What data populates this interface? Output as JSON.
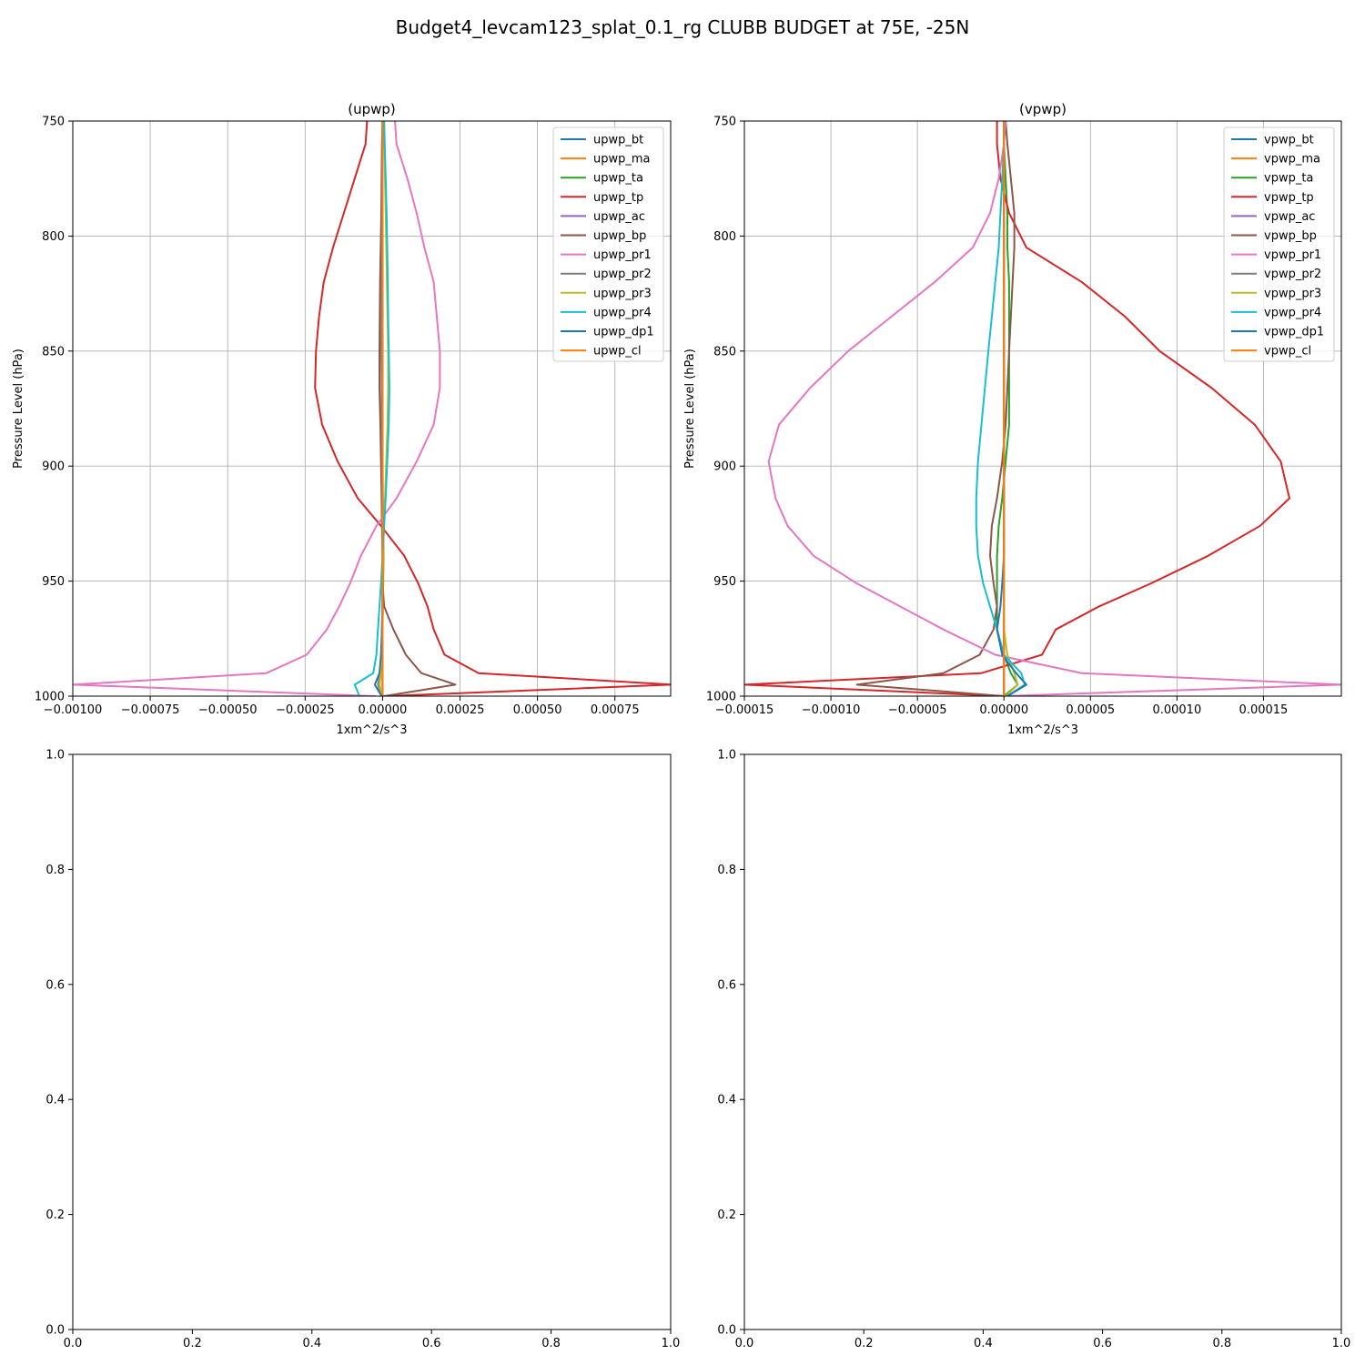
{
  "figure": {
    "suptitle": "Budget4_levcam123_splat_0.1_rg CLUBB BUDGET at 75E, -25N"
  },
  "chart_data": [
    {
      "type": "line",
      "title": "(upwp)",
      "xlabel": "1xm^2/s^3",
      "ylabel": "Pressure Level (hPa)",
      "xlim": [
        -0.001,
        0.00093
      ],
      "ylim": [
        1000,
        750
      ],
      "y_inverted": true,
      "grid": true,
      "legend_position": "top-right",
      "xticks": [
        "−0.00100",
        "−0.00075",
        "−0.00050",
        "−0.00025",
        "0.00000",
        "0.00025",
        "0.00050",
        "0.00075"
      ],
      "xtick_values": [
        -0.001,
        -0.00075,
        -0.0005,
        -0.00025,
        0,
        0.00025,
        0.0005,
        0.00075
      ],
      "yticks": [
        "750",
        "800",
        "850",
        "900",
        "950",
        "1000"
      ],
      "ytick_values": [
        750,
        800,
        850,
        900,
        950,
        1000
      ],
      "pressure_levels": [
        750,
        760,
        775,
        790,
        805,
        820,
        835,
        850,
        866,
        882,
        898,
        914,
        926,
        939,
        951,
        961,
        971,
        982,
        990,
        995,
        1000
      ],
      "series": [
        {
          "name": "upwp_bt",
          "color": "#1f77b4",
          "values": [
            0,
            0,
            0,
            0,
            0,
            0,
            0,
            0,
            0,
            0,
            0,
            0,
            0,
            0,
            0,
            0,
            0,
            0,
            0,
            0,
            0
          ]
        },
        {
          "name": "upwp_ma",
          "color": "#ff7f0e",
          "values": [
            0,
            0,
            0,
            0,
            0,
            0,
            0,
            0,
            0,
            0,
            0,
            0,
            0,
            0,
            0,
            0,
            0,
            0,
            0,
            0,
            0
          ]
        },
        {
          "name": "upwp_ta",
          "color": "#2ca02c",
          "values": [
            5e-07,
            2e-07,
            0,
            -1e-06,
            -2e-06,
            -3e-06,
            -4e-06,
            -3e-06,
            -2e-06,
            -1e-06,
            0,
            1e-06,
            2e-06,
            3e-06,
            2e-06,
            1e-06,
            0,
            -2e-06,
            -5e-06,
            -1e-05,
            -2e-06
          ]
        },
        {
          "name": "upwp_tp",
          "color": "#d62728",
          "values": [
            -5e-05,
            -5.5e-05,
            -9e-05,
            -0.000125,
            -0.00016,
            -0.00019,
            -0.000205,
            -0.000215,
            -0.000218,
            -0.000195,
            -0.000145,
            -8e-05,
            -5e-06,
            7e-05,
            0.000115,
            0.000145,
            0.000165,
            0.0002,
            0.00031,
            0.000935,
            1e-05
          ]
        },
        {
          "name": "upwp_ac",
          "color": "#9467bd",
          "values": [
            0,
            0,
            0,
            0,
            0,
            0,
            0,
            0,
            0,
            0,
            0,
            0,
            0,
            0,
            0,
            0,
            0,
            0,
            0,
            0,
            0
          ]
        },
        {
          "name": "upwp_bp",
          "color": "#8c564b",
          "values": [
            0,
            -2e-06,
            -3e-06,
            -4e-06,
            -6e-06,
            -8e-06,
            -9e-06,
            -1e-05,
            -1e-05,
            -7e-06,
            -5e-06,
            -3e-06,
            -2e-06,
            0,
            0,
            5e-06,
            3.5e-05,
            7.5e-05,
            0.000125,
            0.000235,
            5e-06
          ]
        },
        {
          "name": "upwp_pr1",
          "color": "#e377c2",
          "values": [
            4e-05,
            4.5e-05,
            8e-05,
            0.00011,
            0.000135,
            0.000165,
            0.000175,
            0.000185,
            0.000185,
            0.000165,
            0.00011,
            4.5e-05,
            -2e-05,
            -7e-05,
            -0.000105,
            -0.00014,
            -0.00018,
            -0.000245,
            -0.000375,
            -0.001,
            -2.5e-05
          ]
        },
        {
          "name": "upwp_pr2",
          "color": "#7f7f7f",
          "values": [
            0,
            0,
            0,
            -1e-06,
            -2e-06,
            -3e-06,
            -4e-06,
            -4e-06,
            -3e-06,
            -2e-06,
            -1e-06,
            0,
            1e-06,
            0,
            0,
            -1e-06,
            -2e-06,
            -4e-06,
            -8e-06,
            -1.5e-05,
            -2e-06
          ]
        },
        {
          "name": "upwp_pr3",
          "color": "#bcbd22",
          "values": [
            5e-06,
            6e-06,
            8e-06,
            1e-05,
            1.2e-05,
            1.4e-05,
            1.6e-05,
            1.8e-05,
            1.8e-05,
            1.6e-05,
            1.2e-05,
            8e-06,
            4e-06,
            2e-06,
            1e-06,
            0,
            0,
            -2e-06,
            -5e-06,
            -1e-05,
            -1e-06
          ]
        },
        {
          "name": "upwp_pr4",
          "color": "#17becf",
          "values": [
            5e-06,
            7e-06,
            1e-05,
            1.3e-05,
            1.5e-05,
            1.7e-05,
            1.8e-05,
            2e-05,
            2.2e-05,
            2e-05,
            1.5e-05,
            1e-05,
            5e-06,
            0,
            -5e-06,
            -1e-05,
            -1.5e-05,
            -2e-05,
            -3e-05,
            -9e-05,
            -7.5e-05
          ]
        },
        {
          "name": "upwp_dp1",
          "color": "#1f77b4",
          "values": [
            0,
            0,
            0,
            0,
            0,
            0,
            0,
            0,
            0,
            0,
            0,
            0,
            0,
            0,
            0,
            0,
            -2e-06,
            -5e-06,
            -1e-05,
            -2.5e-05,
            -3e-06
          ]
        },
        {
          "name": "upwp_cl",
          "color": "#ff7f0e",
          "values": [
            0,
            0,
            0,
            0,
            0,
            0,
            0,
            0,
            0,
            0,
            0,
            0,
            0,
            0,
            0,
            0,
            0,
            0,
            0,
            0,
            0
          ]
        }
      ]
    },
    {
      "type": "line",
      "title": "(vpwp)",
      "xlabel": "1xm^2/s^3",
      "ylabel": "Pressure Level (hPa)",
      "xlim": [
        -0.00015,
        0.000195
      ],
      "ylim": [
        1000,
        750
      ],
      "y_inverted": true,
      "grid": true,
      "legend_position": "top-right",
      "xticks": [
        "−0.00015",
        "−0.00010",
        "−0.00005",
        "0.00000",
        "0.00005",
        "0.00010",
        "0.00015"
      ],
      "xtick_values": [
        -0.00015,
        -0.0001,
        -5e-05,
        0,
        5e-05,
        0.0001,
        0.00015
      ],
      "yticks": [
        "750",
        "800",
        "850",
        "900",
        "950",
        "1000"
      ],
      "ytick_values": [
        750,
        800,
        850,
        900,
        950,
        1000
      ],
      "pressure_levels": [
        750,
        760,
        775,
        790,
        805,
        820,
        835,
        850,
        866,
        882,
        898,
        914,
        926,
        939,
        951,
        961,
        971,
        982,
        990,
        995,
        1000
      ],
      "series": [
        {
          "name": "vpwp_bt",
          "color": "#1f77b4",
          "values": [
            0,
            0,
            0,
            0,
            0,
            0,
            0,
            0,
            0,
            0,
            0,
            0,
            0,
            0,
            0,
            0,
            0,
            0,
            0,
            0,
            0
          ]
        },
        {
          "name": "vpwp_ma",
          "color": "#ff7f0e",
          "values": [
            0,
            0,
            0,
            0,
            0,
            0,
            0,
            0,
            0,
            0,
            0,
            0,
            0,
            0,
            0,
            0,
            0,
            0,
            0,
            0,
            0
          ]
        },
        {
          "name": "vpwp_ta",
          "color": "#2ca02c",
          "values": [
            0,
            0,
            1e-06,
            2e-06,
            2e-06,
            3e-06,
            3e-06,
            3e-06,
            3e-06,
            3e-06,
            1e-06,
            -1e-06,
            -3e-06,
            -4e-06,
            -4e-06,
            -4e-06,
            -4e-06,
            0,
            4e-06,
            8e-06,
            0
          ]
        },
        {
          "name": "vpwp_tp",
          "color": "#d62728",
          "values": [
            -4e-06,
            -4e-06,
            -2e-06,
            3e-06,
            1.3e-05,
            4.5e-05,
            7e-05,
            9e-05,
            0.00012,
            0.000145,
            0.00016,
            0.000165,
            0.000148,
            0.000118,
            8.5e-05,
            5.5e-05,
            3e-05,
            2.2e-05,
            -1.3e-05,
            -0.00015,
            0
          ]
        },
        {
          "name": "vpwp_ac",
          "color": "#9467bd",
          "values": [
            0,
            0,
            0,
            0,
            0,
            0,
            0,
            0,
            0,
            0,
            0,
            0,
            0,
            0,
            0,
            0,
            0,
            0,
            0,
            0,
            0
          ]
        },
        {
          "name": "vpwp_bp",
          "color": "#8c564b",
          "values": [
            1e-06,
            2e-06,
            4e-06,
            6e-06,
            6e-06,
            5e-06,
            4e-06,
            3e-06,
            2e-06,
            1e-06,
            -1e-06,
            -4e-06,
            -7e-06,
            -8e-06,
            -6e-06,
            -4e-06,
            -6e-06,
            -1.4e-05,
            -3.5e-05,
            -8.5e-05,
            0
          ]
        },
        {
          "name": "vpwp_pr1",
          "color": "#e377c2",
          "values": [
            1e-06,
            0,
            -3e-06,
            -8e-06,
            -1.8e-05,
            -4e-05,
            -6.5e-05,
            -9e-05,
            -0.000112,
            -0.00013,
            -0.000136,
            -0.000132,
            -0.000125,
            -0.00011,
            -8.5e-05,
            -6e-05,
            -3.5e-05,
            -5e-06,
            4.5e-05,
            0.000195,
            0
          ]
        },
        {
          "name": "vpwp_pr2",
          "color": "#7f7f7f",
          "values": [
            0,
            0,
            0,
            0,
            0,
            0,
            0,
            0,
            0,
            0,
            0,
            0,
            0,
            0,
            0,
            0,
            0,
            0,
            0,
            0,
            0
          ]
        },
        {
          "name": "vpwp_pr3",
          "color": "#bcbd22",
          "values": [
            0,
            0,
            0,
            0,
            0,
            0,
            0,
            0,
            0,
            0,
            0,
            0,
            0,
            0,
            0,
            0,
            0,
            2e-06,
            6e-06,
            8e-06,
            1e-06
          ]
        },
        {
          "name": "vpwp_pr4",
          "color": "#17becf",
          "values": [
            0,
            0,
            -1e-06,
            -2e-06,
            -3e-06,
            -5e-06,
            -7e-06,
            -9e-06,
            -1.1e-05,
            -1.3e-05,
            -1.5e-05,
            -1.6e-05,
            -1.6e-05,
            -1.5e-05,
            -1.2e-05,
            -8e-06,
            -4e-06,
            0,
            1e-05,
            1.2e-05,
            2e-06
          ]
        },
        {
          "name": "vpwp_dp1",
          "color": "#1f77b4",
          "values": [
            0,
            0,
            0,
            0,
            0,
            0,
            0,
            0,
            0,
            0,
            0,
            0,
            0,
            0,
            -1e-06,
            -2e-06,
            -4e-06,
            -1e-06,
            7e-06,
            1.3e-05,
            2e-06
          ]
        },
        {
          "name": "vpwp_cl",
          "color": "#ff7f0e",
          "values": [
            0,
            0,
            0,
            0,
            0,
            0,
            0,
            0,
            0,
            0,
            0,
            0,
            0,
            0,
            0,
            0,
            0,
            0,
            0,
            0,
            0
          ]
        }
      ]
    },
    {
      "type": "line",
      "title": "",
      "xlim": [
        0,
        1
      ],
      "ylim": [
        0,
        1
      ],
      "grid": false,
      "xticks": [
        "0.0",
        "0.2",
        "0.4",
        "0.6",
        "0.8",
        "1.0"
      ],
      "xtick_values": [
        0,
        0.2,
        0.4,
        0.6,
        0.8,
        1.0
      ],
      "yticks": [
        "0.0",
        "0.2",
        "0.4",
        "0.6",
        "0.8",
        "1.0"
      ],
      "ytick_values": [
        0,
        0.2,
        0.4,
        0.6,
        0.8,
        1.0
      ],
      "series": []
    },
    {
      "type": "line",
      "title": "",
      "xlim": [
        0,
        1
      ],
      "ylim": [
        0,
        1
      ],
      "grid": false,
      "xticks": [
        "0.0",
        "0.2",
        "0.4",
        "0.6",
        "0.8",
        "1.0"
      ],
      "xtick_values": [
        0,
        0.2,
        0.4,
        0.6,
        0.8,
        1.0
      ],
      "yticks": [
        "0.0",
        "0.2",
        "0.4",
        "0.6",
        "0.8",
        "1.0"
      ],
      "ytick_values": [
        0,
        0.2,
        0.4,
        0.6,
        0.8,
        1.0
      ],
      "series": []
    }
  ]
}
